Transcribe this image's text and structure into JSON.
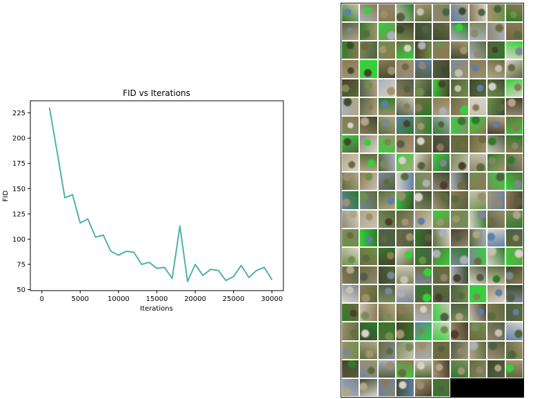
{
  "chart_data": {
    "type": "line",
    "title": "FID vs Iterations",
    "xlabel": "Iterations",
    "ylabel": "FID",
    "xlim": [
      -1500,
      31500
    ],
    "ylim": [
      49,
      237
    ],
    "xticks": [
      0,
      5000,
      10000,
      15000,
      20000,
      25000,
      30000
    ],
    "yticks": [
      50,
      75,
      100,
      125,
      150,
      175,
      200,
      225
    ],
    "grid": false,
    "series": [
      {
        "color": "#4bb3a9",
        "x": [
          1000,
          2000,
          3000,
          4000,
          5000,
          6000,
          7000,
          8000,
          9000,
          10000,
          11000,
          12000,
          13000,
          14000,
          15000,
          16000,
          17000,
          18000,
          19000,
          20000,
          21000,
          22000,
          23000,
          24000,
          25000,
          26000,
          27000,
          28000,
          29000,
          30000
        ],
        "y": [
          230,
          186,
          141,
          144,
          116,
          120,
          102,
          104,
          88,
          84,
          88,
          87,
          75,
          77,
          71,
          72,
          61,
          113,
          58,
          75,
          64,
          70,
          69,
          59,
          63,
          74,
          62,
          69,
          72,
          60
        ]
      }
    ]
  },
  "image_grid": {
    "columns": 10,
    "rows": 21,
    "filled_tiles": 206,
    "empty_color": "#000000",
    "palette": [
      "#6d6a3f",
      "#8a7a55",
      "#5a6b3a",
      "#9c8f6e",
      "#4f5f45",
      "#7a8a5c",
      "#b0a585",
      "#3e4a2e",
      "#a39470",
      "#2f7a2a",
      "#5d7fa8",
      "#c7c2b0",
      "#6e8f4a",
      "#8f8670",
      "#4a3f2a",
      "#34d13a",
      "#7b8794",
      "#a8b0b8",
      "#d7d2c8",
      "#55603f"
    ]
  }
}
